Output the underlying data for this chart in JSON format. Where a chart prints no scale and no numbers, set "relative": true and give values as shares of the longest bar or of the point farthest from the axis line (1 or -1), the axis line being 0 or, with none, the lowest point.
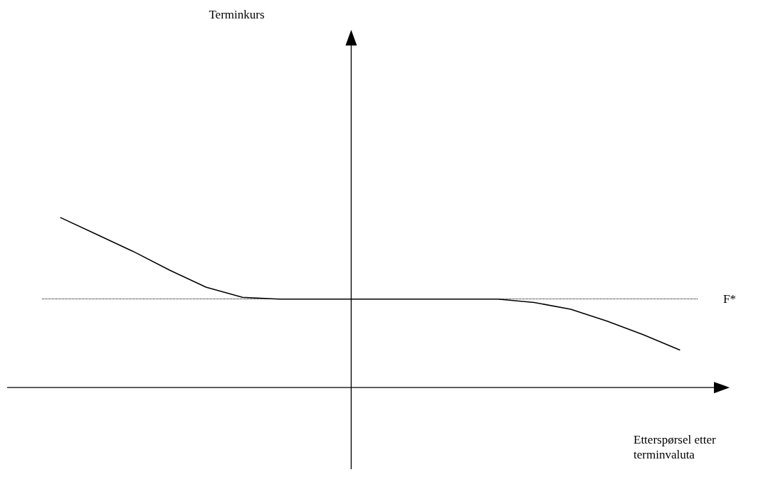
{
  "chart_data": {
    "type": "line",
    "relative": true,
    "annotations": [
      "Terminkurs"
    ],
    "xlabel": "Etterspørsel etter terminvaluta",
    "categories": [
      null,
      null,
      null,
      null,
      null,
      null,
      null,
      null,
      null,
      null,
      null,
      null,
      null,
      null,
      null,
      null,
      null,
      null
    ],
    "series": [
      {
        "color": "#000000",
        "values": [
          1.0,
          0.9,
          0.8,
          0.69,
          0.59,
          0.53,
          0.52,
          0.52,
          0.52,
          0.52,
          0.52,
          0.52,
          0.52,
          0.5,
          0.46,
          0.39,
          0.31,
          0.22
        ]
      }
    ],
    "ref_lines": [
      {
        "axis": "y",
        "value": 0.52,
        "label": "F*",
        "line_style": "dotted",
        "color": "#000000"
      }
    ],
    "grid": false,
    "marker": "none",
    "line_style": "solid"
  }
}
